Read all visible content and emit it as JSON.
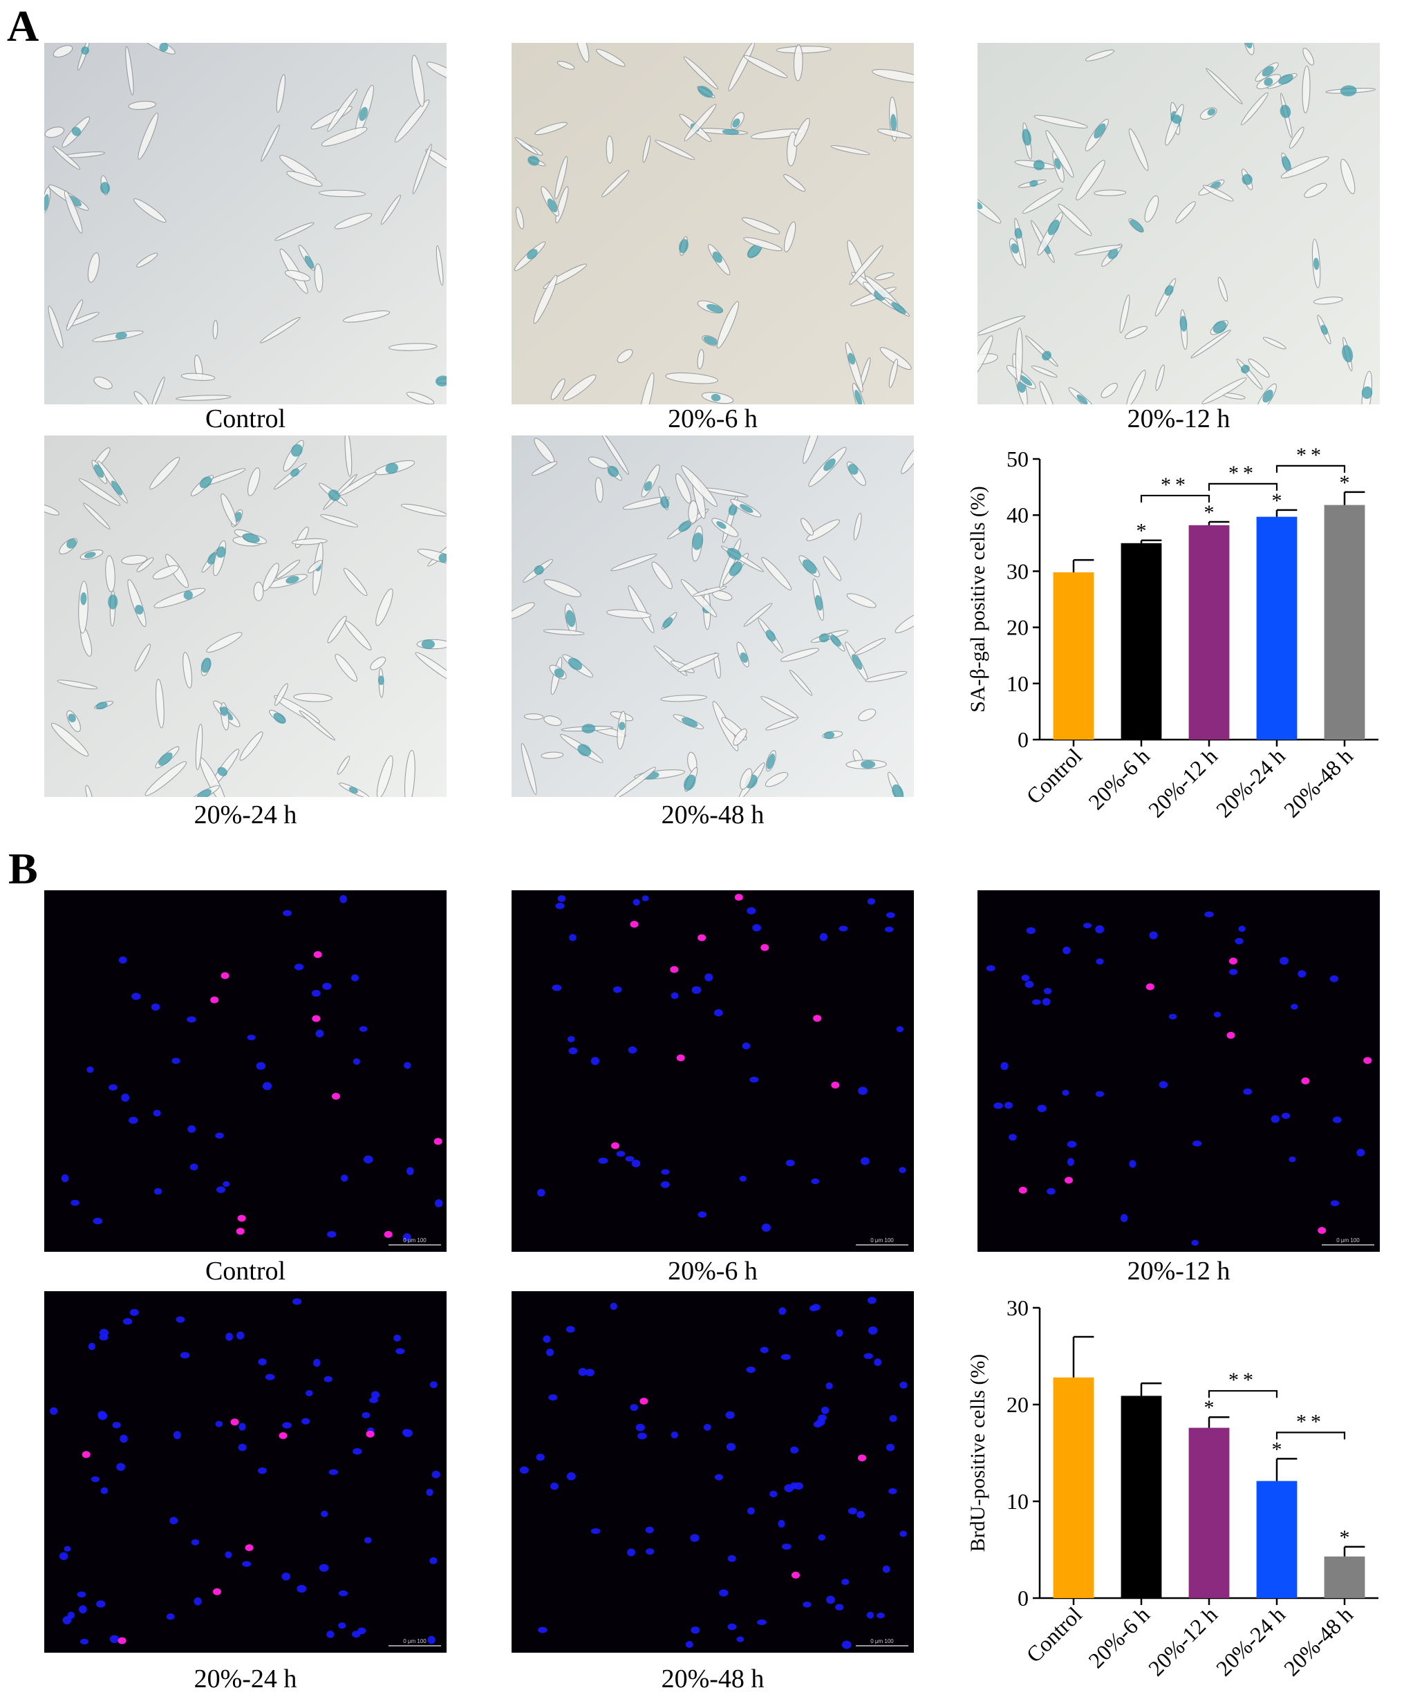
{
  "panels": [
    {
      "letter": "A",
      "images": [
        {
          "caption": "Control",
          "type": "brightfield",
          "stain": 0.18
        },
        {
          "caption": "20%-6 h",
          "type": "brightfield",
          "stain": 0.32
        },
        {
          "caption": "20%-12 h",
          "type": "brightfield",
          "stain": 0.38
        },
        {
          "caption": "20%-24 h",
          "type": "brightfield",
          "stain": 0.42
        },
        {
          "caption": "20%-48 h",
          "type": "brightfield",
          "stain": 0.46
        }
      ]
    },
    {
      "letter": "B",
      "images": [
        {
          "caption": "Control",
          "type": "fluorescence",
          "scalebar_label": "0   μm   100"
        },
        {
          "caption": "20%-6 h",
          "type": "fluorescence",
          "scalebar_label": "0   μm   100"
        },
        {
          "caption": "20%-12 h",
          "type": "fluorescence",
          "scalebar_label": "0   μm   100"
        },
        {
          "caption": "20%-24 h",
          "type": "fluorescence",
          "scalebar_label": "0   μm   100"
        },
        {
          "caption": "20%-48 h",
          "type": "fluorescence",
          "scalebar_label": "0   μm   100"
        }
      ]
    }
  ],
  "chart_data": [
    {
      "type": "bar",
      "categories": [
        "Control",
        "20%-6 h",
        "20%-12 h",
        "20%-24 h",
        "20%-48 h"
      ],
      "values": [
        29.8,
        35.0,
        38.2,
        39.7,
        41.8
      ],
      "errors": [
        2.2,
        0.5,
        0.6,
        1.2,
        2.3
      ],
      "colors": [
        "#FFA500",
        "#000000",
        "#8B2A7E",
        "#0A50FF",
        "#808080"
      ],
      "ylabel": "SA-β-gal positive cells (%)",
      "ylim": [
        0,
        50
      ],
      "yticks": [
        0,
        10,
        20,
        30,
        40,
        50
      ],
      "sig_marks": [
        "",
        "*",
        "*",
        "*",
        "*"
      ],
      "brackets": [
        {
          "from": 1,
          "to": 2,
          "label": "**"
        },
        {
          "from": 2,
          "to": 3,
          "label": "**"
        },
        {
          "from": 3,
          "to": 4,
          "label": "**"
        }
      ]
    },
    {
      "type": "bar",
      "categories": [
        "Control",
        "20%-6 h",
        "20%-12 h",
        "20%-24 h",
        "20%-48 h"
      ],
      "values": [
        22.8,
        20.9,
        17.6,
        12.1,
        4.3
      ],
      "errors": [
        4.2,
        1.3,
        1.1,
        2.3,
        1.0
      ],
      "colors": [
        "#FFA500",
        "#000000",
        "#8B2A7E",
        "#0A50FF",
        "#808080"
      ],
      "ylabel": "BrdU-positive cells (%)",
      "ylim": [
        0,
        30
      ],
      "yticks": [
        0,
        10,
        20,
        30
      ],
      "sig_marks": [
        "",
        "",
        "*",
        "*",
        "*"
      ],
      "brackets": [
        {
          "from": 2,
          "to": 3,
          "label": "**"
        },
        {
          "from": 3,
          "to": 4,
          "label": "**"
        }
      ]
    }
  ]
}
